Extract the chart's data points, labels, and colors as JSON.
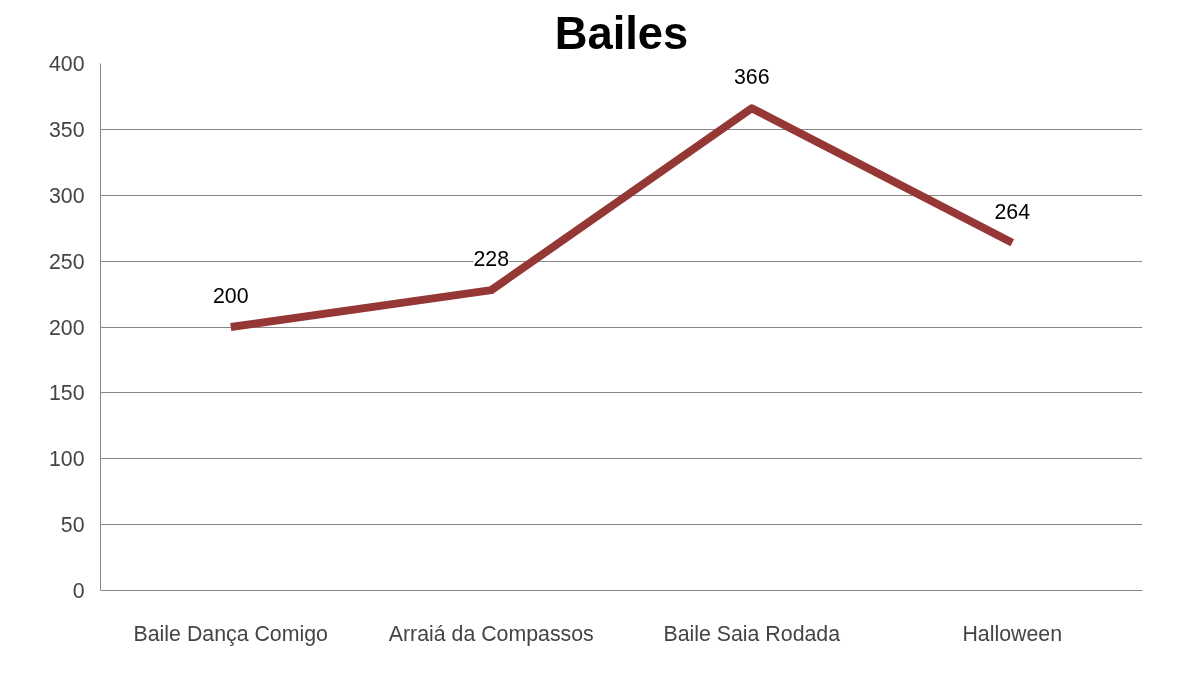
{
  "chart_data": {
    "type": "line",
    "title": "Bailes",
    "categories": [
      "Baile Dança Comigo",
      "Arraiá da Compassos",
      "Baile Saia Rodada",
      "Halloween"
    ],
    "series": [
      {
        "color": "#953735",
        "values": [
          200,
          228,
          366,
          264
        ]
      }
    ],
    "ylim": [
      0,
      400
    ],
    "yticks": [
      0,
      50,
      100,
      150,
      200,
      250,
      300,
      350,
      400
    ],
    "grid": "y",
    "data_labels": true,
    "marker": "none",
    "line_style": "solid"
  }
}
